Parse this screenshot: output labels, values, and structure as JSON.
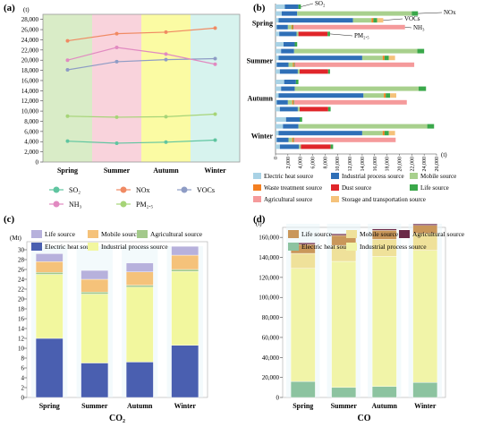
{
  "chart_data": [
    {
      "panel": "(a)",
      "type": "line",
      "ylabel": "(t)",
      "ylim": [
        0,
        29000
      ],
      "yticks": [
        "0",
        "2,000",
        "4,000",
        "6,000",
        "8,000",
        "10,000",
        "12,000",
        "14,000",
        "16,000",
        "18,000",
        "20,000",
        "22,000",
        "24,000",
        "26,000",
        "28,000"
      ],
      "categories": [
        "Spring",
        "Summer",
        "Autumn",
        "Winter"
      ],
      "season_colors": [
        "#d9ecc7",
        "#f9d3dc",
        "#fbfba3",
        "#d7f3ee"
      ],
      "series": [
        {
          "name": "SO₂",
          "values": [
            4100,
            3700,
            3900,
            4300
          ],
          "color": "#5fc5a0"
        },
        {
          "name": "NOx",
          "values": [
            23800,
            25200,
            25500,
            26300
          ],
          "color": "#f08a63"
        },
        {
          "name": "VOCs",
          "values": [
            18100,
            19700,
            20100,
            20300
          ],
          "color": "#8e9cc5"
        },
        {
          "name": "NH₃",
          "values": [
            20000,
            22500,
            21200,
            19200
          ],
          "color": "#e18ac1"
        },
        {
          "name": "PM₂.₅",
          "values": [
            9000,
            8800,
            8900,
            9400
          ],
          "color": "#a6d477"
        }
      ],
      "legend": [
        "SO₂",
        "NOx",
        "VOCs",
        "NH₃",
        "PM₂.₅"
      ]
    },
    {
      "panel": "(b)",
      "type": "bar",
      "orientation": "horizontal-stacked",
      "xlabel": "(t)",
      "xlim": [
        0,
        26000
      ],
      "xticks": [
        "0",
        "2,000",
        "4,000",
        "6,000",
        "8,000",
        "10,000",
        "12,000",
        "14,000",
        "16,000",
        "18,000",
        "20,000",
        "22,000",
        "24,000",
        "26,000"
      ],
      "groups": [
        "Spring",
        "Summer",
        "Autumn",
        "Winter"
      ],
      "pollutants": [
        "SO₂",
        "NOx",
        "VOCs",
        "NH₃",
        "PM₂.₅"
      ],
      "annotations": [
        "SO₂",
        "NOx",
        "VOCs",
        "NH₃",
        "PM₂.₅"
      ],
      "sources": [
        {
          "name": "Electric heat source",
          "color": "#a9d2e5"
        },
        {
          "name": "Industrial process source",
          "color": "#2f6fb7"
        },
        {
          "name": "Mobile source",
          "color": "#a8d08d"
        },
        {
          "name": "Waste treatment source",
          "color": "#f47f20"
        },
        {
          "name": "Dust source",
          "color": "#e0262a"
        },
        {
          "name": "Life source",
          "color": "#3aa84a"
        },
        {
          "name": "Agricultural source",
          "color": "#f59a9b"
        },
        {
          "name": "Storage and transportation source",
          "color": "#f5c27a"
        }
      ],
      "series": [
        {
          "group": "Spring",
          "pollutant": "SO₂",
          "segments": [
            1500,
            2200,
            0,
            0,
            0,
            400,
            0,
            0
          ]
        },
        {
          "group": "Spring",
          "pollutant": "NOx",
          "segments": [
            1000,
            2500,
            18500,
            0,
            0,
            1000,
            0,
            0
          ]
        },
        {
          "group": "Spring",
          "pollutant": "VOCs",
          "segments": [
            500,
            12000,
            3000,
            300,
            0,
            600,
            0,
            1000
          ]
        },
        {
          "group": "Spring",
          "pollutant": "NH₃",
          "segments": [
            200,
            1800,
            600,
            200,
            0,
            100,
            18000,
            0
          ]
        },
        {
          "group": "Spring",
          "pollutant": "PM₂.₅",
          "segments": [
            600,
            2800,
            300,
            0,
            4700,
            400,
            0,
            0
          ]
        },
        {
          "group": "Summer",
          "pollutant": "SO₂",
          "segments": [
            1300,
            1800,
            0,
            0,
            0,
            400,
            0,
            0
          ]
        },
        {
          "group": "Summer",
          "pollutant": "NOx",
          "segments": [
            900,
            2100,
            19900,
            0,
            0,
            1100,
            0,
            0
          ]
        },
        {
          "group": "Summer",
          "pollutant": "VOCs",
          "segments": [
            500,
            13500,
            3300,
            300,
            0,
            700,
            0,
            1000
          ]
        },
        {
          "group": "Summer",
          "pollutant": "NH₃",
          "segments": [
            200,
            1900,
            700,
            200,
            0,
            100,
            19300,
            0
          ]
        },
        {
          "group": "Summer",
          "pollutant": "PM₂.₅",
          "segments": [
            700,
            2900,
            300,
            0,
            4600,
            300,
            0,
            0
          ]
        },
        {
          "group": "Autumn",
          "pollutant": "SO₂",
          "segments": [
            1400,
            1900,
            0,
            0,
            0,
            400,
            0,
            0
          ]
        },
        {
          "group": "Autumn",
          "pollutant": "NOx",
          "segments": [
            900,
            2200,
            20000,
            0,
            0,
            1200,
            0,
            0
          ]
        },
        {
          "group": "Autumn",
          "pollutant": "VOCs",
          "segments": [
            500,
            13700,
            3300,
            300,
            0,
            700,
            0,
            1000
          ]
        },
        {
          "group": "Autumn",
          "pollutant": "NH₃",
          "segments": [
            200,
            1800,
            700,
            200,
            0,
            100,
            18200,
            0
          ]
        },
        {
          "group": "Autumn",
          "pollutant": "PM₂.₅",
          "segments": [
            700,
            2900,
            300,
            0,
            4600,
            400,
            0,
            0
          ]
        },
        {
          "group": "Winter",
          "pollutant": "SO₂",
          "segments": [
            1700,
            2200,
            0,
            0,
            0,
            400,
            0,
            0
          ]
        },
        {
          "group": "Winter",
          "pollutant": "NOx",
          "segments": [
            1200,
            2500,
            20800,
            0,
            0,
            1100,
            0,
            0
          ]
        },
        {
          "group": "Winter",
          "pollutant": "VOCs",
          "segments": [
            500,
            13500,
            3300,
            300,
            0,
            700,
            0,
            1000
          ]
        },
        {
          "group": "Winter",
          "pollutant": "NH₃",
          "segments": [
            200,
            1900,
            600,
            200,
            0,
            100,
            16400,
            0
          ]
        },
        {
          "group": "Winter",
          "pollutant": "PM₂.₅",
          "segments": [
            700,
            3100,
            300,
            0,
            4800,
            400,
            0,
            0
          ]
        }
      ]
    },
    {
      "panel": "(c)",
      "type": "bar",
      "orientation": "vertical-stacked",
      "title": "CO₂",
      "ylabel": "(Mt)",
      "ylim": [
        0,
        30
      ],
      "yticks": [
        "0",
        "2",
        "4",
        "6",
        "8",
        "10",
        "12",
        "14",
        "16",
        "18",
        "20",
        "22",
        "24",
        "26",
        "28",
        "30"
      ],
      "categories": [
        "Spring",
        "Summer",
        "Autumn",
        "Winter"
      ],
      "legend": [
        "Life source",
        "Mobile source",
        "Agricultural source",
        "Electric heat source",
        "Industrial process source"
      ],
      "series": [
        {
          "name": "Electric heat source",
          "values": [
            12.0,
            7.0,
            7.2,
            10.6
          ],
          "color": "#4a5fb0"
        },
        {
          "name": "Industrial process source",
          "values": [
            13.0,
            14.0,
            15.2,
            15.0
          ],
          "color": "#f2f79e"
        },
        {
          "name": "Agricultural source",
          "values": [
            0.4,
            0.4,
            0.4,
            0.4
          ],
          "color": "#a3c98b"
        },
        {
          "name": "Mobile source",
          "values": [
            2.2,
            2.6,
            2.7,
            2.9
          ],
          "color": "#f5c27a"
        },
        {
          "name": "Life source",
          "values": [
            1.6,
            1.8,
            1.8,
            1.8
          ],
          "color": "#b7b1dc"
        }
      ]
    },
    {
      "panel": "(d)",
      "type": "bar",
      "orientation": "vertical-stacked",
      "title": "CO",
      "ylabel": "(t)",
      "ylim": [
        0,
        170000
      ],
      "yticks": [
        "0",
        "20,000",
        "40,000",
        "60,000",
        "80,000",
        "100,000",
        "120,000",
        "140,000",
        "160,000"
      ],
      "categories": [
        "Spring",
        "Summer",
        "Autumn",
        "Winter"
      ],
      "legend": [
        "Life source",
        "Mobile source",
        "Agricultural source",
        "Electric heat source",
        "Industrial process source"
      ],
      "series": [
        {
          "name": "Electric heat source",
          "values": [
            16000,
            10000,
            11000,
            15000
          ],
          "color": "#8cc3a0"
        },
        {
          "name": "Industrial process source",
          "values": [
            113000,
            126000,
            130000,
            132000
          ],
          "color": "#f1f4a8"
        },
        {
          "name": "Mobile source",
          "values": [
            15000,
            16000,
            17000,
            17000
          ],
          "color": "#efe19a"
        },
        {
          "name": "Life source",
          "values": [
            9000,
            10000,
            9000,
            8000
          ],
          "color": "#c9975a"
        },
        {
          "name": "Agricultural source",
          "values": [
            1500,
            1500,
            1500,
            1500
          ],
          "color": "#6b2a48"
        }
      ]
    }
  ]
}
